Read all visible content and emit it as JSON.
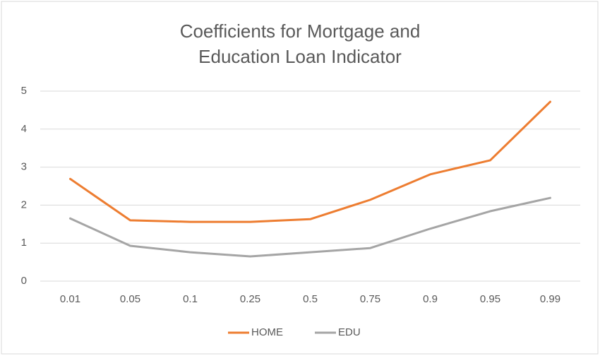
{
  "chart_data": {
    "type": "line",
    "title": "Coefficients for Mortgage and Education Loan Indicator",
    "categories": [
      "0.01",
      "0.05",
      "0.1",
      "0.25",
      "0.5",
      "0.75",
      "0.9",
      "0.95",
      "0.99"
    ],
    "series": [
      {
        "name": "HOME",
        "color": "#ed7d31",
        "values": [
          2.69,
          1.6,
          1.56,
          1.56,
          1.63,
          2.14,
          2.81,
          3.18,
          4.72
        ]
      },
      {
        "name": "EDU",
        "color": "#a5a5a5",
        "values": [
          1.65,
          0.93,
          0.76,
          0.65,
          0.76,
          0.87,
          1.38,
          1.84,
          2.19
        ]
      }
    ],
    "ylim": [
      0,
      5
    ],
    "yticks": [
      0,
      1,
      2,
      3,
      4,
      5
    ],
    "grid": true,
    "legend": "bottom"
  }
}
